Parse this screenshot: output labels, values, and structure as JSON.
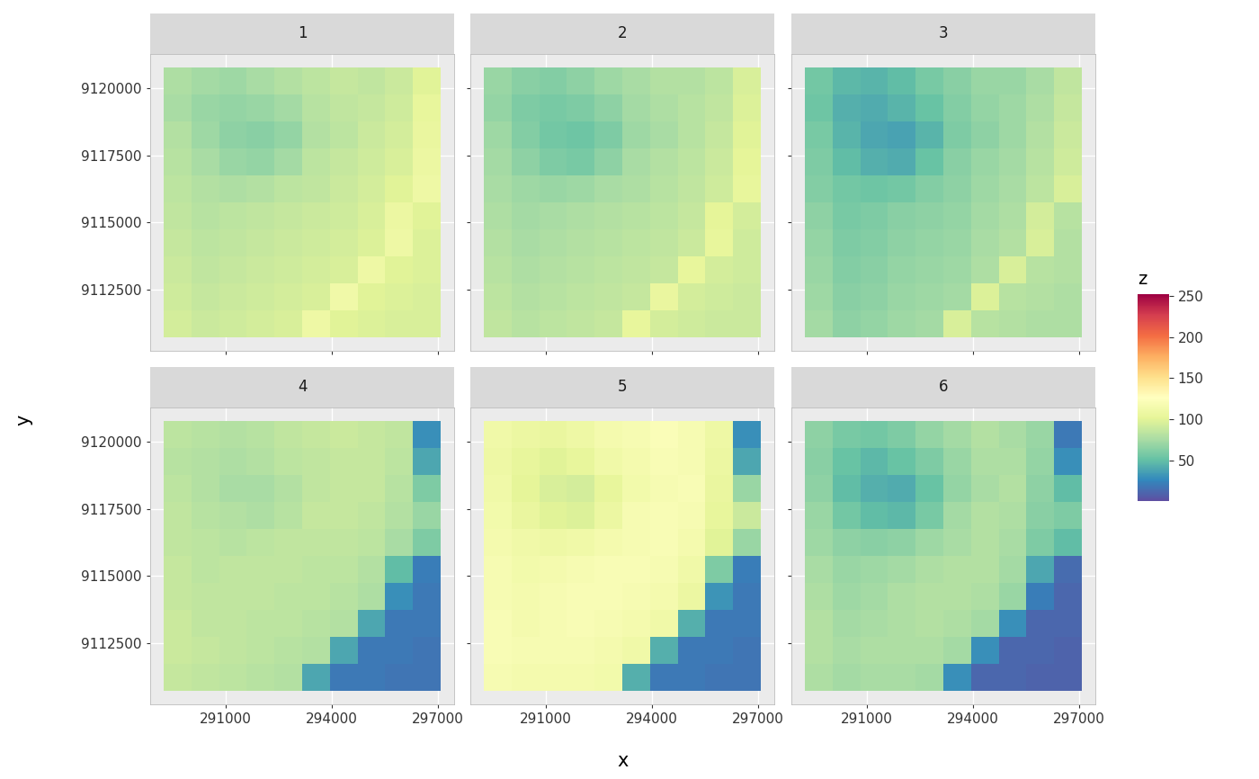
{
  "chart_data": [
    {
      "type": "heatmap",
      "title": "1",
      "xlim": [
        288869,
        297466
      ],
      "ylim": [
        9110231,
        9121269
      ],
      "xticks": [
        291000,
        294000,
        297000
      ],
      "yticks": [
        9112500,
        9115000,
        9117500,
        9120000
      ],
      "x_extent": [
        289260,
        297075
      ],
      "y_extent": [
        9110733,
        9120767
      ],
      "cells": [
        [
          78,
          74,
          72,
          76,
          80,
          84,
          88,
          86,
          90,
          100
        ],
        [
          76,
          70,
          68,
          70,
          74,
          82,
          86,
          88,
          92,
          104
        ],
        [
          80,
          72,
          66,
          64,
          68,
          80,
          84,
          90,
          94,
          106
        ],
        [
          82,
          76,
          70,
          68,
          74,
          84,
          88,
          92,
          96,
          108
        ],
        [
          84,
          80,
          78,
          80,
          84,
          86,
          90,
          94,
          100,
          110
        ],
        [
          86,
          82,
          84,
          86,
          88,
          90,
          92,
          96,
          108,
          100
        ],
        [
          88,
          84,
          86,
          88,
          90,
          92,
          94,
          98,
          110,
          98
        ],
        [
          90,
          86,
          88,
          90,
          92,
          94,
          96,
          110,
          100,
          98
        ],
        [
          92,
          88,
          90,
          92,
          94,
          96,
          112,
          100,
          98,
          96
        ],
        [
          94,
          90,
          92,
          94,
          96,
          110,
          100,
          98,
          96,
          96
        ]
      ]
    },
    {
      "type": "heatmap",
      "title": "2",
      "xlim": [
        288869,
        297466
      ],
      "ylim": [
        9110231,
        9121269
      ],
      "xticks": [
        291000,
        294000,
        297000
      ],
      "yticks": [
        9112500,
        9115000,
        9117500,
        9120000
      ],
      "x_extent": [
        289260,
        297075
      ],
      "y_extent": [
        9110733,
        9120767
      ],
      "cells": [
        [
          70,
          64,
          62,
          66,
          72,
          76,
          80,
          80,
          84,
          96
        ],
        [
          68,
          60,
          58,
          60,
          66,
          74,
          78,
          82,
          86,
          98
        ],
        [
          72,
          62,
          56,
          54,
          60,
          72,
          76,
          82,
          88,
          100
        ],
        [
          74,
          66,
          60,
          58,
          66,
          76,
          80,
          84,
          90,
          102
        ],
        [
          76,
          72,
          70,
          72,
          76,
          78,
          82,
          86,
          92,
          104
        ],
        [
          78,
          74,
          76,
          78,
          80,
          82,
          84,
          88,
          102,
          94
        ],
        [
          80,
          76,
          78,
          80,
          82,
          84,
          86,
          90,
          104,
          92
        ],
        [
          82,
          78,
          80,
          82,
          84,
          86,
          88,
          104,
          94,
          92
        ],
        [
          84,
          80,
          82,
          84,
          86,
          88,
          106,
          94,
          92,
          90
        ],
        [
          86,
          82,
          84,
          86,
          88,
          104,
          94,
          92,
          90,
          90
        ]
      ]
    },
    {
      "type": "heatmap",
      "title": "3",
      "xlim": [
        288869,
        297466
      ],
      "ylim": [
        9110231,
        9121269
      ],
      "xticks": [
        291000,
        294000,
        297000
      ],
      "yticks": [
        9112500,
        9115000,
        9117500,
        9120000
      ],
      "x_extent": [
        289260,
        297075
      ],
      "y_extent": [
        9110733,
        9120767
      ],
      "cells": [
        [
          56,
          48,
          46,
          50,
          58,
          64,
          70,
          70,
          76,
          86
        ],
        [
          54,
          44,
          42,
          46,
          52,
          62,
          68,
          72,
          78,
          88
        ],
        [
          58,
          46,
          40,
          38,
          46,
          60,
          66,
          72,
          80,
          90
        ],
        [
          60,
          50,
          44,
          42,
          52,
          64,
          70,
          74,
          82,
          92
        ],
        [
          62,
          56,
          54,
          56,
          62,
          66,
          72,
          76,
          84,
          96
        ],
        [
          66,
          58,
          60,
          64,
          66,
          68,
          74,
          78,
          94,
          82
        ],
        [
          68,
          60,
          62,
          66,
          68,
          70,
          76,
          80,
          96,
          80
        ],
        [
          70,
          62,
          64,
          68,
          70,
          72,
          78,
          96,
          82,
          80
        ],
        [
          72,
          64,
          66,
          70,
          72,
          74,
          98,
          82,
          80,
          78
        ],
        [
          74,
          66,
          68,
          72,
          74,
          96,
          82,
          80,
          78,
          78
        ]
      ]
    },
    {
      "type": "heatmap",
      "title": "4",
      "xlim": [
        288869,
        297466
      ],
      "ylim": [
        9110231,
        9121269
      ],
      "xticks": [
        291000,
        294000,
        297000
      ],
      "yticks": [
        9112500,
        9115000,
        9117500,
        9120000
      ],
      "x_extent": [
        289260,
        297075
      ],
      "y_extent": [
        9110733,
        9120767
      ],
      "cells": [
        [
          84,
          82,
          80,
          82,
          86,
          88,
          90,
          88,
          86,
          30
        ],
        [
          82,
          80,
          78,
          80,
          84,
          86,
          88,
          88,
          84,
          40
        ],
        [
          84,
          80,
          76,
          76,
          80,
          86,
          88,
          88,
          82,
          60
        ],
        [
          86,
          82,
          80,
          78,
          82,
          88,
          88,
          86,
          80,
          70
        ],
        [
          86,
          84,
          82,
          84,
          86,
          86,
          86,
          84,
          76,
          60
        ],
        [
          88,
          84,
          86,
          86,
          86,
          84,
          84,
          80,
          50,
          22
        ],
        [
          88,
          86,
          86,
          86,
          84,
          84,
          82,
          78,
          30,
          20
        ],
        [
          90,
          86,
          86,
          84,
          84,
          82,
          80,
          40,
          20,
          20
        ],
        [
          90,
          88,
          86,
          84,
          82,
          80,
          40,
          20,
          20,
          18
        ],
        [
          88,
          86,
          84,
          82,
          80,
          40,
          20,
          20,
          18,
          18
        ]
      ]
    },
    {
      "type": "heatmap",
      "title": "5",
      "xlim": [
        288869,
        297466
      ],
      "ylim": [
        9110231,
        9121269
      ],
      "xticks": [
        291000,
        294000,
        297000
      ],
      "yticks": [
        9112500,
        9115000,
        9117500,
        9120000
      ],
      "x_extent": [
        289260,
        297075
      ],
      "y_extent": [
        9110733,
        9120767
      ],
      "cells": [
        [
          112,
          108,
          106,
          110,
          116,
          118,
          122,
          118,
          110,
          30
        ],
        [
          110,
          104,
          100,
          104,
          112,
          116,
          120,
          118,
          108,
          40
        ],
        [
          112,
          102,
          96,
          94,
          104,
          114,
          118,
          120,
          106,
          70
        ],
        [
          114,
          106,
          100,
          98,
          108,
          118,
          120,
          118,
          104,
          90
        ],
        [
          116,
          112,
          110,
          112,
          116,
          118,
          120,
          116,
          100,
          70
        ],
        [
          118,
          114,
          116,
          118,
          120,
          120,
          118,
          112,
          60,
          22
        ],
        [
          118,
          116,
          118,
          120,
          120,
          118,
          116,
          108,
          32,
          20
        ],
        [
          120,
          116,
          118,
          120,
          118,
          116,
          112,
          44,
          20,
          20
        ],
        [
          120,
          118,
          118,
          118,
          116,
          112,
          44,
          20,
          20,
          18
        ],
        [
          118,
          116,
          116,
          116,
          114,
          44,
          20,
          20,
          18,
          18
        ]
      ]
    },
    {
      "type": "heatmap",
      "title": "6",
      "xlim": [
        288869,
        297466
      ],
      "ylim": [
        9110231,
        9121269
      ],
      "xticks": [
        291000,
        294000,
        297000
      ],
      "yticks": [
        9112500,
        9115000,
        9117500,
        9120000
      ],
      "x_extent": [
        289260,
        297075
      ],
      "y_extent": [
        9110733,
        9120767
      ],
      "cells": [
        [
          66,
          58,
          56,
          60,
          68,
          74,
          80,
          76,
          70,
          20
        ],
        [
          64,
          52,
          48,
          52,
          60,
          70,
          78,
          78,
          68,
          30
        ],
        [
          66,
          50,
          44,
          42,
          52,
          68,
          76,
          80,
          66,
          50
        ],
        [
          70,
          56,
          50,
          48,
          58,
          74,
          80,
          78,
          64,
          60
        ],
        [
          72,
          66,
          64,
          66,
          72,
          76,
          80,
          76,
          60,
          50
        ],
        [
          76,
          70,
          72,
          74,
          78,
          80,
          80,
          74,
          40,
          14
        ],
        [
          78,
          72,
          74,
          78,
          80,
          80,
          78,
          70,
          22,
          12
        ],
        [
          80,
          74,
          76,
          78,
          80,
          78,
          74,
          30,
          12,
          12
        ],
        [
          80,
          76,
          78,
          78,
          78,
          74,
          30,
          12,
          12,
          10
        ],
        [
          78,
          74,
          76,
          76,
          74,
          30,
          12,
          12,
          10,
          10
        ]
      ]
    }
  ],
  "xlabel": "x",
  "ylabel": "y",
  "colorbar": {
    "title": "z",
    "range": [
      1,
      252
    ],
    "ticks": [
      50,
      100,
      150,
      200,
      250
    ]
  }
}
